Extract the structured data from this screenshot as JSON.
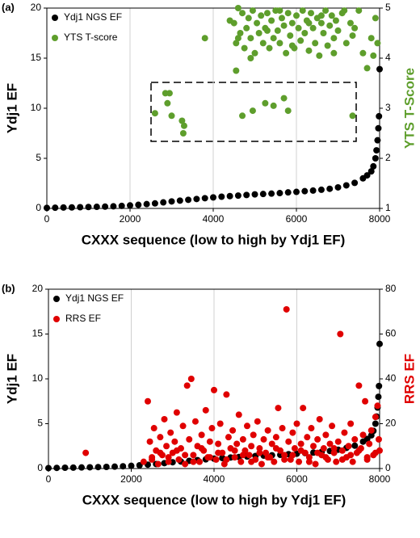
{
  "chart_data": [
    {
      "type": "scatter",
      "panel_label": "(a)",
      "xlabel": "CXXX sequence (low to high by Ydj1 EF)",
      "ylabel": "Ydj1 EF",
      "y2label": "YTS T-Score",
      "xlim": [
        0,
        8000
      ],
      "xticks": [
        0,
        2000,
        4000,
        6000,
        8000
      ],
      "ylim": [
        0,
        20
      ],
      "yticks": [
        0,
        5,
        10,
        15,
        20
      ],
      "y2lim": [
        1,
        5
      ],
      "y2ticks": [
        1,
        2,
        3,
        4,
        5
      ],
      "grid": "x",
      "legend": "upper left",
      "series": [
        {
          "name": "Ydj1 NGS EF",
          "color": "#000000",
          "x": [
            0,
            200,
            400,
            600,
            800,
            1000,
            1200,
            1400,
            1600,
            1800,
            2000,
            2200,
            2400,
            2600,
            2800,
            3000,
            3200,
            3400,
            3600,
            3800,
            4000,
            4200,
            4400,
            4600,
            4800,
            5000,
            5200,
            5400,
            5600,
            5800,
            6000,
            6200,
            6400,
            6600,
            6800,
            7000,
            7200,
            7400,
            7600,
            7700,
            7800,
            7850,
            7900,
            7925,
            7950,
            7970,
            7985,
            8000
          ],
          "values": [
            0.05,
            0.07,
            0.09,
            0.1,
            0.12,
            0.14,
            0.16,
            0.18,
            0.21,
            0.25,
            0.3,
            0.36,
            0.43,
            0.5,
            0.6,
            0.7,
            0.78,
            0.86,
            0.94,
            1.02,
            1.1,
            1.17,
            1.23,
            1.28,
            1.34,
            1.4,
            1.44,
            1.48,
            1.53,
            1.6,
            1.65,
            1.72,
            1.78,
            1.86,
            1.96,
            2.1,
            2.3,
            2.55,
            3.0,
            3.3,
            3.7,
            4.2,
            5.0,
            5.8,
            6.8,
            8.0,
            9.2,
            13.9
          ]
        },
        {
          "name": "YTS T-score",
          "color": "#5e9e2c",
          "axis": "y2",
          "x": [
            4500,
            4550,
            4600,
            4650,
            4700,
            4750,
            4800,
            4850,
            4900,
            4950,
            5000,
            5050,
            5100,
            5150,
            5200,
            5250,
            5300,
            5350,
            5400,
            5450,
            5500,
            5550,
            5600,
            5650,
            5700,
            5750,
            5800,
            5850,
            5900,
            5950,
            6000,
            6050,
            6100,
            6150,
            6200,
            6250,
            6300,
            6350,
            6400,
            6450,
            6500,
            6550,
            6600,
            6650,
            6700,
            6750,
            6800,
            6850,
            6900,
            6950,
            7000,
            7100,
            7200,
            7300,
            7400,
            7500,
            7600,
            7800,
            7900,
            4600,
            4900,
            5300,
            5600,
            5900,
            6300,
            6600,
            6900,
            7150,
            7350,
            3800,
            4400,
            4550,
            7700,
            7850,
            7950,
            2600,
            2850,
            2950,
            2900,
            3000,
            3250,
            3300,
            3280,
            4700,
            4950,
            5250,
            5450,
            5700,
            5800,
            7350
          ],
          "values": [
            4.7,
            4.3,
            5.0,
            4.5,
            4.9,
            4.2,
            4.6,
            4.8,
            4.4,
            4.95,
            4.1,
            4.7,
            4.5,
            4.85,
            4.3,
            4.6,
            4.9,
            4.2,
            4.75,
            4.4,
            4.95,
            4.55,
            4.3,
            4.8,
            4.65,
            4.1,
            4.9,
            4.45,
            4.7,
            4.2,
            4.85,
            4.6,
            4.35,
            4.95,
            4.5,
            4.75,
            4.15,
            4.9,
            4.6,
            4.3,
            4.8,
            4.05,
            4.7,
            4.5,
            4.95,
            4.25,
            4.65,
            4.85,
            4.4,
            4.75,
            4.55,
            4.9,
            4.3,
            4.7,
            4.6,
            4.95,
            4.1,
            4.4,
            4.8,
            4.4,
            4.0,
            4.55,
            4.95,
            4.25,
            4.7,
            4.85,
            4.1,
            4.95,
            4.45,
            4.4,
            4.75,
            3.75,
            3.8,
            4.05,
            4.3,
            2.9,
            3.3,
            3.3,
            3.1,
            2.85,
            2.75,
            2.65,
            2.5,
            2.85,
            2.95,
            3.1,
            3.05,
            3.2,
            2.95,
            2.85
          ]
        }
      ]
    },
    {
      "type": "scatter",
      "panel_label": "(b)",
      "xlabel": "CXXX sequence (low to high by Ydj1 EF)",
      "ylabel": "Ydj1 EF",
      "y2label": "RRS EF",
      "xlim": [
        0,
        8000
      ],
      "xticks": [
        0,
        2000,
        4000,
        6000,
        8000
      ],
      "ylim": [
        0,
        20
      ],
      "yticks": [
        0,
        5,
        10,
        15,
        20
      ],
      "y2lim": [
        0,
        80
      ],
      "y2ticks": [
        0,
        20,
        40,
        60,
        80
      ],
      "grid": "x",
      "legend": "upper left",
      "series": [
        {
          "name": "Ydj1 NGS EF",
          "color": "#000000",
          "x": [
            0,
            200,
            400,
            600,
            800,
            1000,
            1200,
            1400,
            1600,
            1800,
            2000,
            2200,
            2400,
            2600,
            2800,
            3000,
            3200,
            3400,
            3600,
            3800,
            4000,
            4200,
            4400,
            4600,
            4800,
            5000,
            5200,
            5400,
            5600,
            5800,
            6000,
            6200,
            6400,
            6600,
            6800,
            7000,
            7200,
            7400,
            7600,
            7700,
            7800,
            7850,
            7900,
            7925,
            7950,
            7970,
            7985,
            8000
          ],
          "values": [
            0.05,
            0.07,
            0.09,
            0.1,
            0.12,
            0.14,
            0.16,
            0.18,
            0.21,
            0.25,
            0.3,
            0.36,
            0.43,
            0.5,
            0.6,
            0.7,
            0.78,
            0.86,
            0.94,
            1.02,
            1.1,
            1.17,
            1.23,
            1.28,
            1.34,
            1.4,
            1.44,
            1.48,
            1.53,
            1.6,
            1.65,
            1.72,
            1.78,
            1.86,
            1.96,
            2.1,
            2.3,
            2.55,
            3.0,
            3.3,
            3.7,
            4.2,
            5.0,
            5.8,
            6.8,
            8.0,
            9.2,
            13.9
          ]
        },
        {
          "name": "RRS EF",
          "color": "#e00000",
          "axis": "y2",
          "x": [
            900,
            2300,
            2400,
            2450,
            2500,
            2550,
            2600,
            2650,
            2700,
            2750,
            2800,
            2850,
            2900,
            2950,
            3000,
            3050,
            3100,
            3150,
            3200,
            3250,
            3300,
            3350,
            3400,
            3450,
            3500,
            3550,
            3600,
            3650,
            3700,
            3750,
            3800,
            3850,
            3900,
            3950,
            4000,
            4050,
            4100,
            4150,
            4200,
            4250,
            4300,
            4350,
            4400,
            4450,
            4500,
            4550,
            4600,
            4650,
            4700,
            4750,
            4800,
            4850,
            4900,
            4950,
            5000,
            5050,
            5100,
            5150,
            5200,
            5250,
            5300,
            5350,
            5400,
            5450,
            5500,
            5550,
            5600,
            5650,
            5700,
            5750,
            5800,
            5850,
            5900,
            5950,
            6000,
            6050,
            6100,
            6150,
            6200,
            6250,
            6300,
            6350,
            6400,
            6450,
            6500,
            6550,
            6600,
            6650,
            6700,
            6750,
            6800,
            6850,
            6900,
            6950,
            7000,
            7050,
            7100,
            7150,
            7200,
            7250,
            7300,
            7350,
            7400,
            7450,
            7500,
            7550,
            7600,
            7650,
            7700,
            7750,
            7800,
            7850,
            7900,
            7950,
            7980,
            8000,
            2500,
            2700,
            2900,
            3100,
            3300,
            3500,
            3700,
            3900,
            4100,
            4300,
            4500,
            4700,
            4900,
            5100,
            5300,
            5500,
            5700,
            5900,
            6100,
            6300,
            6500,
            6700,
            6900,
            7100,
            7300,
            7500,
            7700,
            7900
          ],
          "values": [
            7,
            3,
            30,
            12,
            5,
            18,
            8,
            2,
            14,
            6,
            22,
            10,
            3,
            16,
            7,
            12,
            25,
            4,
            9,
            19,
            2,
            37,
            13,
            40,
            6,
            21,
            10,
            3,
            15,
            8,
            26,
            5,
            12,
            18,
            35,
            4,
            11,
            20,
            7,
            2,
            33,
            14,
            9,
            17,
            5,
            11,
            24,
            3,
            13,
            8,
            19,
            6,
            10,
            15,
            4,
            21,
            9,
            2,
            13,
            7,
            17,
            5,
            11,
            3,
            14,
            27,
            8,
            18,
            6,
            71,
            12,
            4,
            16,
            9,
            20,
            3,
            11,
            27,
            7,
            14,
            5,
            18,
            10,
            2,
            13,
            22,
            6,
            9,
            15,
            4,
            11,
            19,
            7,
            3,
            12,
            60,
            8,
            16,
            5,
            10,
            20,
            3,
            13,
            7,
            37,
            9,
            15,
            30,
            4,
            11,
            17,
            6,
            23,
            28,
            13,
            8,
            4,
            7,
            5,
            8,
            6,
            3,
            9,
            5,
            7,
            4,
            8,
            6,
            3,
            7,
            5,
            9,
            4,
            6,
            8,
            3,
            7,
            5,
            9,
            4,
            6,
            8,
            5,
            7
          ]
        }
      ]
    }
  ]
}
